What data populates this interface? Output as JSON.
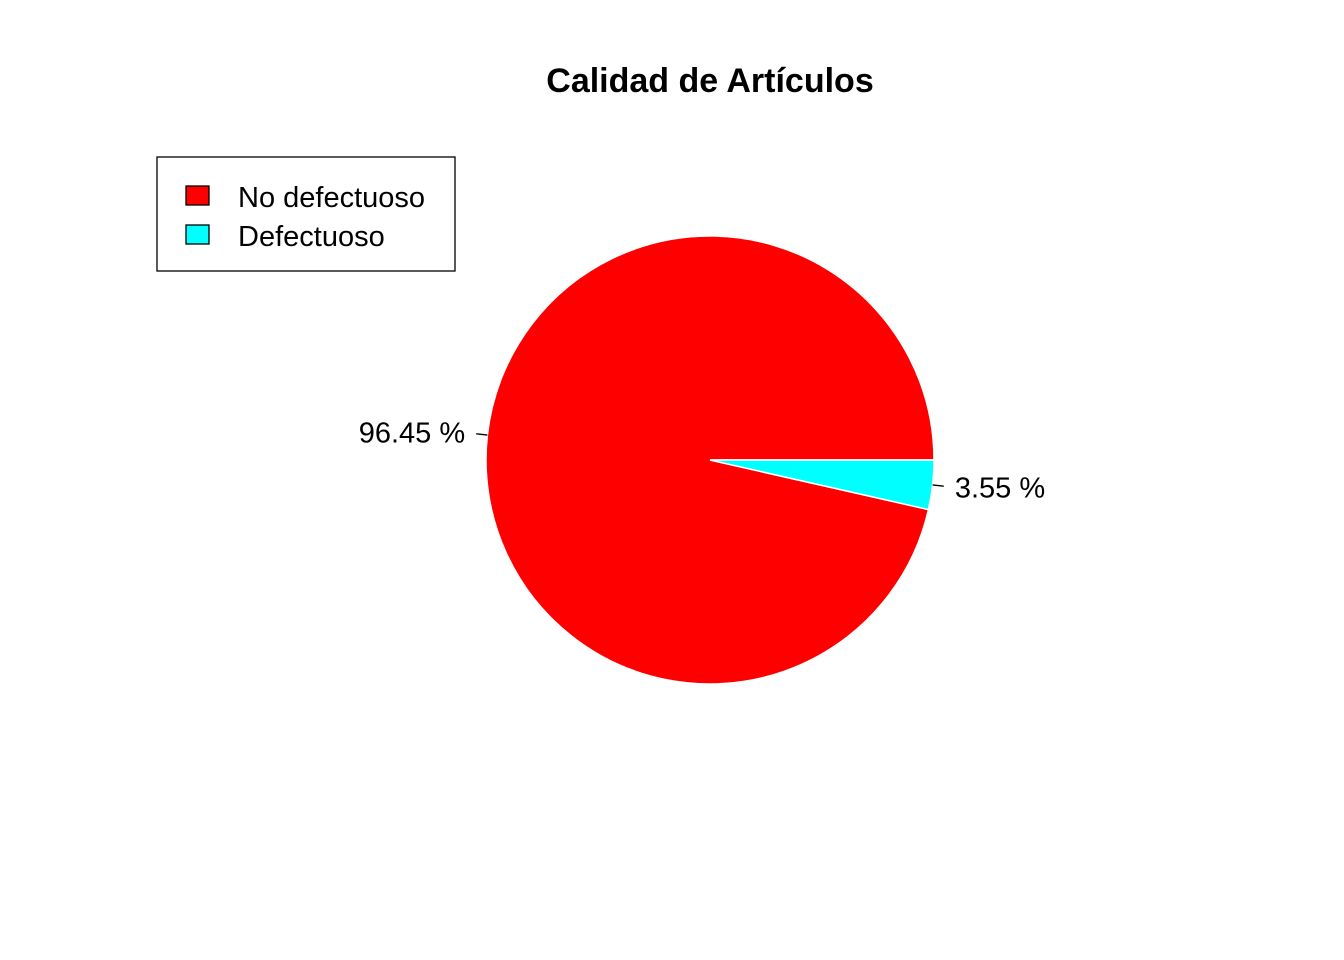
{
  "chart_data": {
    "type": "pie",
    "title": "Calidad de Artículos",
    "slices": [
      {
        "name": "No defectuoso",
        "value": 96.45,
        "label": "96.45 %",
        "color": "#ff0000"
      },
      {
        "name": "Defectuoso",
        "value": 3.55,
        "label": "3.55 %",
        "color": "#00ffff"
      }
    ],
    "start_angle_deg": 0,
    "direction": "counterclockwise",
    "legend": {
      "position": "top-left",
      "entries": [
        "No defectuoso",
        "Defectuoso"
      ]
    }
  }
}
